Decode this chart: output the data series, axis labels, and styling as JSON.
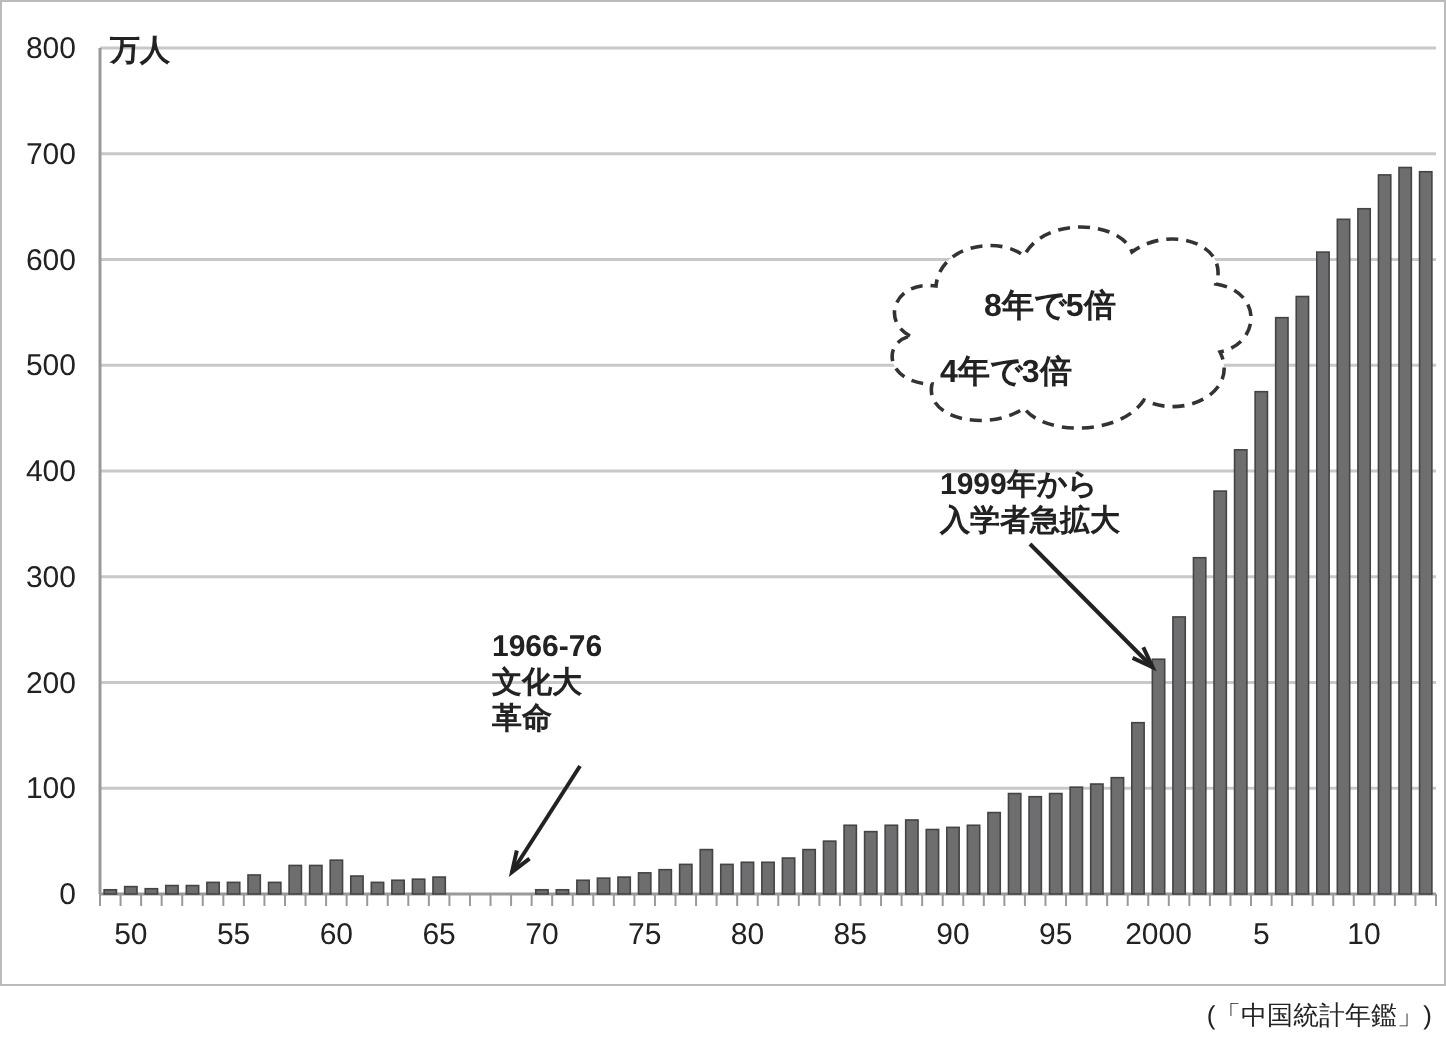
{
  "chart_data": {
    "type": "bar",
    "ylabel": "万人",
    "categories": [
      null,
      "50",
      null,
      null,
      null,
      null,
      "55",
      null,
      null,
      null,
      null,
      "60",
      null,
      null,
      null,
      null,
      "65",
      null,
      null,
      null,
      null,
      "70",
      null,
      null,
      null,
      null,
      "75",
      null,
      null,
      null,
      null,
      "80",
      null,
      null,
      null,
      null,
      "85",
      null,
      null,
      null,
      null,
      "90",
      null,
      null,
      null,
      null,
      "95",
      null,
      null,
      null,
      null,
      "2000",
      null,
      null,
      null,
      null,
      "5",
      null,
      null,
      null,
      null,
      "10",
      null,
      null,
      null
    ],
    "values": [
      4,
      7,
      5,
      8,
      8,
      11,
      11,
      18,
      11,
      27,
      27,
      32,
      17,
      11,
      13,
      14,
      16,
      null,
      null,
      null,
      null,
      4,
      4,
      13,
      15,
      16,
      20,
      23,
      28,
      42,
      28,
      30,
      30,
      34,
      42,
      50,
      65,
      59,
      65,
      70,
      61,
      63,
      65,
      77,
      95,
      92,
      95,
      101,
      104,
      110,
      162,
      222,
      262,
      318,
      381,
      420,
      475,
      545,
      565,
      607,
      638,
      648,
      680,
      687,
      683
    ],
    "color": "#6e6e70",
    "ylim": [
      0,
      800
    ],
    "yticks": [
      0,
      100,
      200,
      300,
      400,
      500,
      600,
      700,
      800
    ],
    "grid": "y",
    "annotations": [
      "1966-76",
      "文化大革命",
      {
        "text": "1999年から入学者急拡大",
        "x": "2000",
        "y": 222
      },
      "8年で5倍",
      "4年で3倍",
      "(「中国統計年鑑」)"
    ]
  }
}
